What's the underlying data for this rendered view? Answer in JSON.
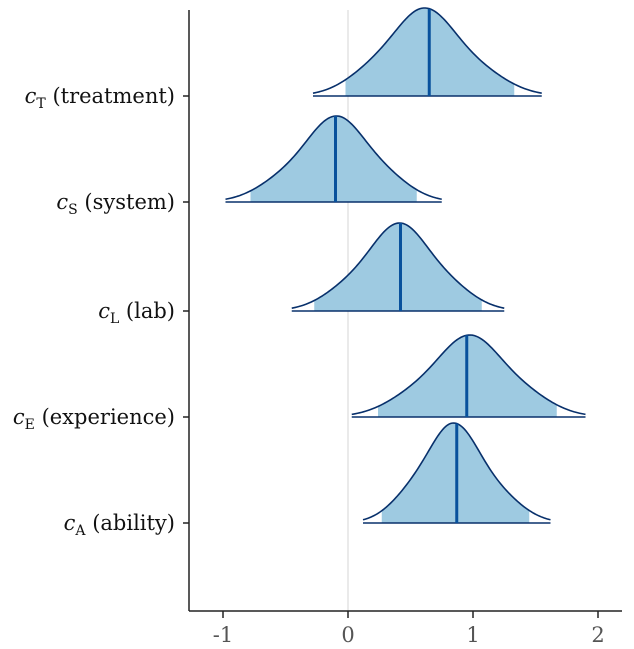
{
  "chart_data": {
    "type": "ridgeline",
    "title": "",
    "xlabel": "",
    "ylabel": "",
    "xlim": [
      -1.3,
      2.2
    ],
    "xticks": [
      -1,
      0,
      1,
      2
    ],
    "xtick_labels": [
      "-1",
      "0",
      "1",
      "2"
    ],
    "reference_line_x": 0,
    "grid": false,
    "fill_color": "#9ecae1",
    "line_color": "#08306b",
    "median_color": "#08519c",
    "series": [
      {
        "label_sym": "c",
        "label_sub": "T",
        "label_text": "(treatment)",
        "median": 0.65,
        "interval": [
          -0.02,
          1.33
        ],
        "range": [
          -0.28,
          1.55
        ],
        "peak_at": 0.6
      },
      {
        "label_sym": "c",
        "label_sub": "S",
        "label_text": "(system)",
        "median": -0.1,
        "interval": [
          -0.78,
          0.55
        ],
        "range": [
          -0.98,
          0.75
        ],
        "peak_at": -0.08
      },
      {
        "label_sym": "c",
        "label_sub": "L",
        "label_text": "(lab)",
        "median": 0.42,
        "interval": [
          -0.27,
          1.07
        ],
        "range": [
          -0.45,
          1.25
        ],
        "peak_at": 0.42
      },
      {
        "label_sym": "c",
        "label_sub": "E",
        "label_text": "(experience)",
        "median": 0.95,
        "interval": [
          0.24,
          1.67
        ],
        "range": [
          0.03,
          1.9
        ],
        "peak_at": 0.98
      },
      {
        "label_sym": "c",
        "label_sub": "A",
        "label_text": "(ability)",
        "median": 0.87,
        "interval": [
          0.27,
          1.45
        ],
        "range": [
          0.12,
          1.62
        ],
        "peak_at": 0.83
      }
    ]
  }
}
